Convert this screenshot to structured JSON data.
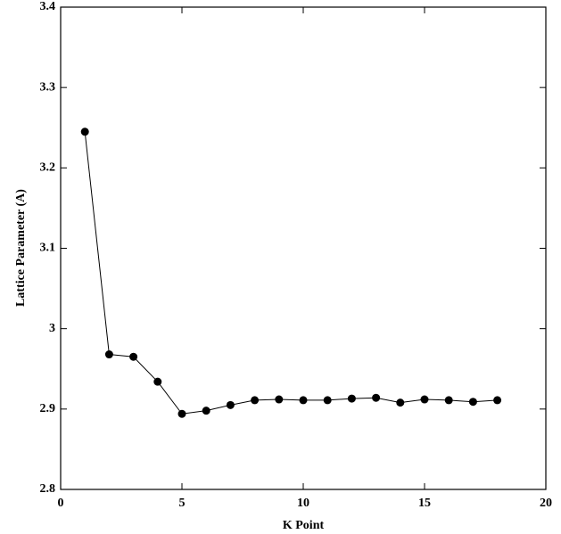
{
  "chart_data": {
    "type": "line",
    "x_label": "K Point",
    "y_label": "Lattice Parameter (A)",
    "x": [
      1,
      2,
      3,
      4,
      5,
      6,
      7,
      8,
      9,
      10,
      11,
      12,
      13,
      14,
      15,
      16,
      17,
      18
    ],
    "series": [
      {
        "color": "#000000",
        "values": [
          3.245,
          2.968,
          2.965,
          2.934,
          2.894,
          2.898,
          2.905,
          2.911,
          2.912,
          2.911,
          2.911,
          2.913,
          2.914,
          2.908,
          2.912,
          2.911,
          2.909,
          2.911
        ]
      }
    ],
    "xlim": [
      0,
      20
    ],
    "xticks": [
      0,
      5,
      10,
      15,
      20
    ],
    "ylim": [
      2.8,
      3.4
    ],
    "yticks": [
      2.8,
      2.9,
      3,
      3.1,
      3.2,
      3.3,
      3.4
    ]
  }
}
